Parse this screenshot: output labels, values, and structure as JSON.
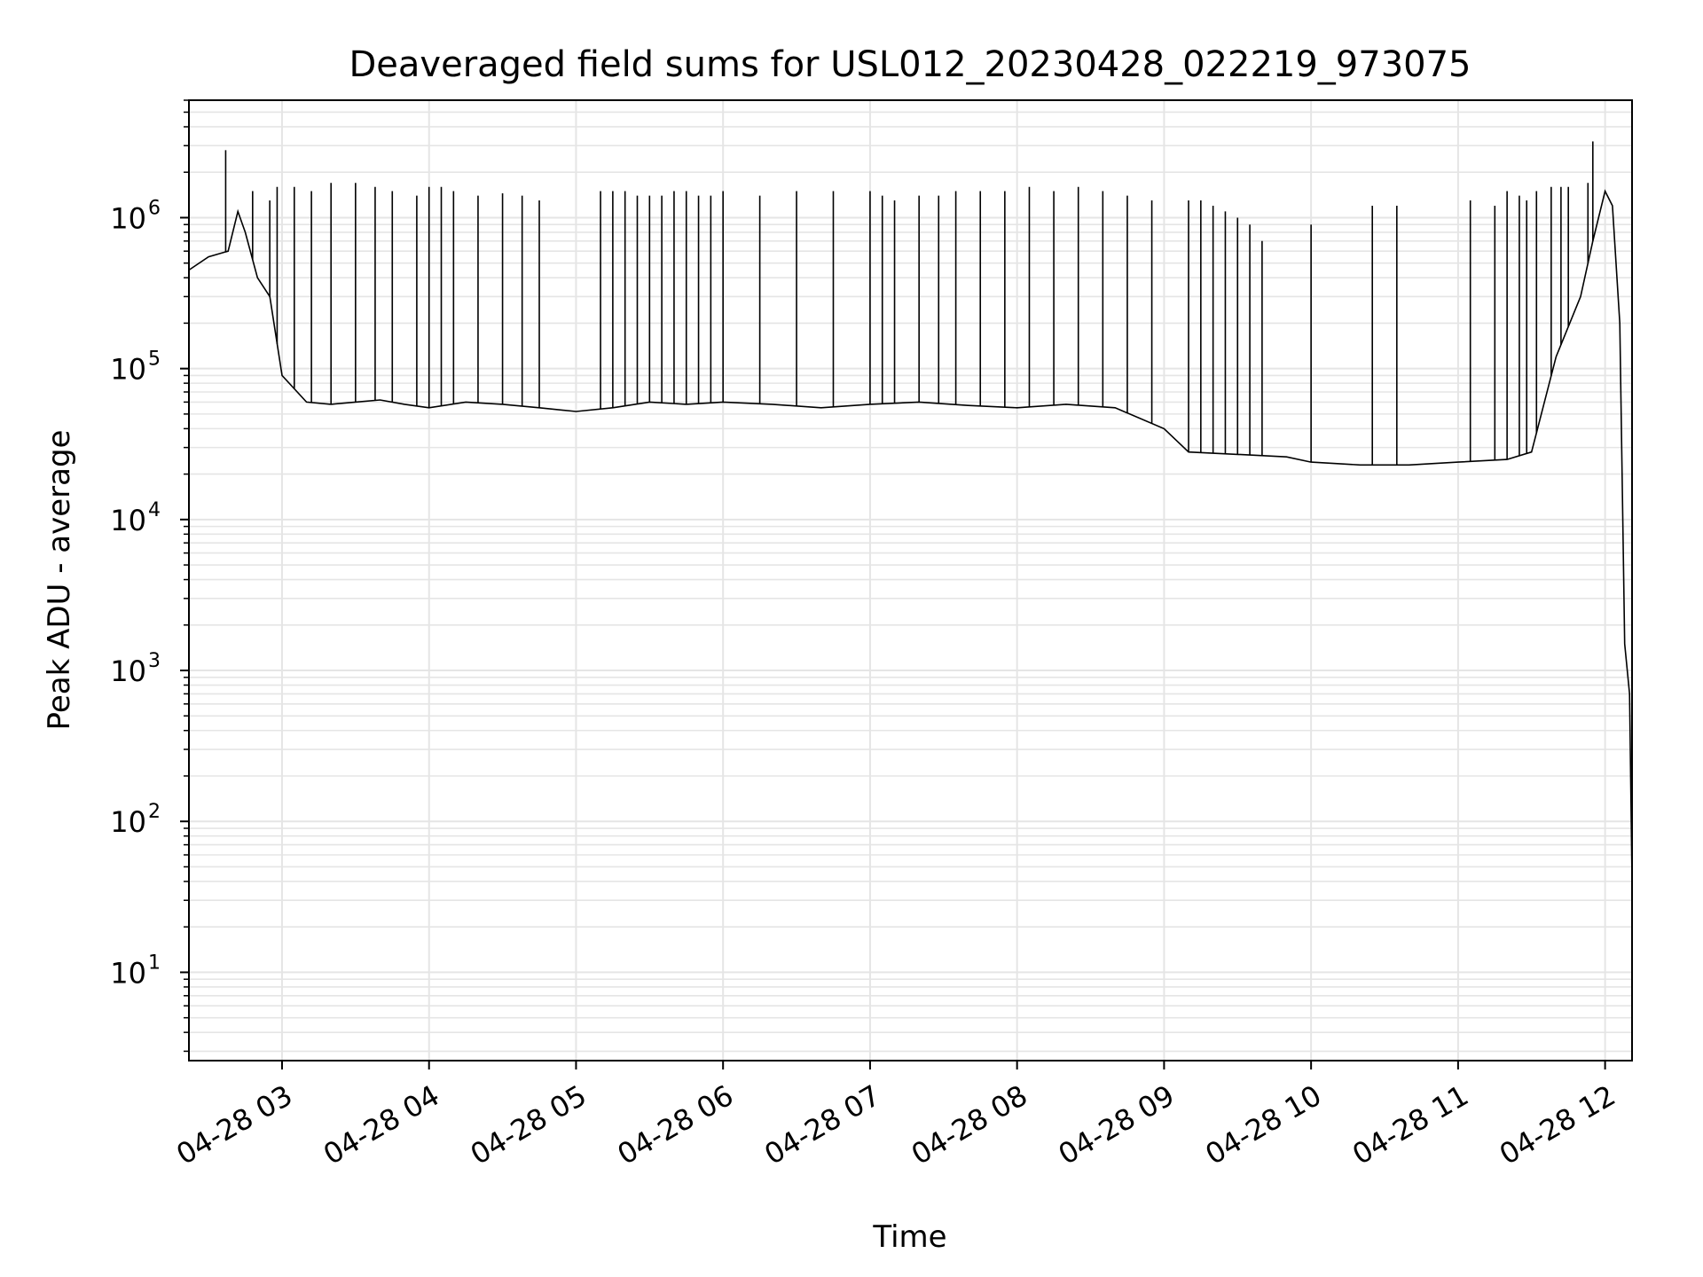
{
  "chart_data": {
    "type": "line",
    "title": "Deaveraged field sums for USL012_20230428_022219_973075",
    "xlabel": "Time",
    "ylabel": "Peak ADU - average",
    "yscale": "log",
    "ylim": [
      2.6,
      6000000
    ],
    "xlim": [
      "2023-04-28 02:22",
      "2023-04-28 12:11"
    ],
    "grid": true,
    "line_color": "#000000",
    "grid_color": "#e5e5e5",
    "x_ticks": [
      {
        "time": "2023-04-28 03:00",
        "label": "04-28 03"
      },
      {
        "time": "2023-04-28 04:00",
        "label": "04-28 04"
      },
      {
        "time": "2023-04-28 05:00",
        "label": "04-28 05"
      },
      {
        "time": "2023-04-28 06:00",
        "label": "04-28 06"
      },
      {
        "time": "2023-04-28 07:00",
        "label": "04-28 07"
      },
      {
        "time": "2023-04-28 08:00",
        "label": "04-28 08"
      },
      {
        "time": "2023-04-28 09:00",
        "label": "04-28 09"
      },
      {
        "time": "2023-04-28 10:00",
        "label": "04-28 10"
      },
      {
        "time": "2023-04-28 11:00",
        "label": "04-28 11"
      },
      {
        "time": "2023-04-28 12:00",
        "label": "04-28 12"
      }
    ],
    "y_ticks": [
      {
        "value": 10,
        "base": "10",
        "exp": "1"
      },
      {
        "value": 100,
        "base": "10",
        "exp": "2"
      },
      {
        "value": 1000,
        "base": "10",
        "exp": "3"
      },
      {
        "value": 10000,
        "base": "10",
        "exp": "4"
      },
      {
        "value": 100000,
        "base": "10",
        "exp": "5"
      },
      {
        "value": 1000000,
        "base": "10",
        "exp": "6"
      }
    ],
    "series": [
      {
        "x": [
          "2023-04-28 02:22",
          "2023-04-28 02:30",
          "2023-04-28 02:38",
          "2023-04-28 02:42",
          "2023-04-28 02:45",
          "2023-04-28 02:50",
          "2023-04-28 02:55",
          "2023-04-28 03:00",
          "2023-04-28 03:10",
          "2023-04-28 03:20",
          "2023-04-28 03:30",
          "2023-04-28 03:40",
          "2023-04-28 03:50",
          "2023-04-28 04:00",
          "2023-04-28 04:15",
          "2023-04-28 04:30",
          "2023-04-28 04:45",
          "2023-04-28 05:00",
          "2023-04-28 05:15",
          "2023-04-28 05:30",
          "2023-04-28 05:45",
          "2023-04-28 06:00",
          "2023-04-28 06:20",
          "2023-04-28 06:40",
          "2023-04-28 07:00",
          "2023-04-28 07:20",
          "2023-04-28 07:40",
          "2023-04-28 08:00",
          "2023-04-28 08:20",
          "2023-04-28 08:40",
          "2023-04-28 09:00",
          "2023-04-28 09:10",
          "2023-04-28 09:30",
          "2023-04-28 09:50",
          "2023-04-28 10:00",
          "2023-04-28 10:20",
          "2023-04-28 10:40",
          "2023-04-28 11:00",
          "2023-04-28 11:20",
          "2023-04-28 11:30",
          "2023-04-28 11:40",
          "2023-04-28 11:50",
          "2023-04-28 11:55",
          "2023-04-28 12:00",
          "2023-04-28 12:03",
          "2023-04-28 12:06",
          "2023-04-28 12:08",
          "2023-04-28 12:10",
          "2023-04-28 12:11"
        ],
        "y": [
          450000,
          550000,
          600000,
          1100000,
          800000,
          400000,
          300000,
          90000,
          60000,
          58000,
          60000,
          62000,
          58000,
          55000,
          60000,
          58000,
          55000,
          52000,
          55000,
          60000,
          58000,
          60000,
          58000,
          55000,
          58000,
          60000,
          57000,
          55000,
          58000,
          55000,
          40000,
          28000,
          27000,
          26000,
          24000,
          23000,
          23000,
          24000,
          25000,
          28000,
          120000,
          300000,
          700000,
          1500000,
          1200000,
          200000,
          1500,
          700,
          40
        ]
      }
    ],
    "spikes": {
      "x": [
        "2023-04-28 02:37",
        "2023-04-28 02:48",
        "2023-04-28 02:55",
        "2023-04-28 02:58",
        "2023-04-28 03:05",
        "2023-04-28 03:12",
        "2023-04-28 03:20",
        "2023-04-28 03:30",
        "2023-04-28 03:38",
        "2023-04-28 03:45",
        "2023-04-28 03:55",
        "2023-04-28 04:00",
        "2023-04-28 04:05",
        "2023-04-28 04:10",
        "2023-04-28 04:20",
        "2023-04-28 04:30",
        "2023-04-28 04:38",
        "2023-04-28 04:45",
        "2023-04-28 05:10",
        "2023-04-28 05:15",
        "2023-04-28 05:20",
        "2023-04-28 05:25",
        "2023-04-28 05:30",
        "2023-04-28 05:35",
        "2023-04-28 05:40",
        "2023-04-28 05:45",
        "2023-04-28 05:50",
        "2023-04-28 05:55",
        "2023-04-28 06:00",
        "2023-04-28 06:15",
        "2023-04-28 06:30",
        "2023-04-28 06:45",
        "2023-04-28 07:00",
        "2023-04-28 07:05",
        "2023-04-28 07:10",
        "2023-04-28 07:20",
        "2023-04-28 07:28",
        "2023-04-28 07:35",
        "2023-04-28 07:45",
        "2023-04-28 07:55",
        "2023-04-28 08:05",
        "2023-04-28 08:15",
        "2023-04-28 08:25",
        "2023-04-28 08:35",
        "2023-04-28 08:45",
        "2023-04-28 08:55",
        "2023-04-28 09:10",
        "2023-04-28 09:15",
        "2023-04-28 09:20",
        "2023-04-28 09:25",
        "2023-04-28 09:30",
        "2023-04-28 09:35",
        "2023-04-28 09:40",
        "2023-04-28 10:00",
        "2023-04-28 10:25",
        "2023-04-28 10:35",
        "2023-04-28 11:05",
        "2023-04-28 11:15",
        "2023-04-28 11:20",
        "2023-04-28 11:25",
        "2023-04-28 11:28",
        "2023-04-28 11:32",
        "2023-04-28 11:38",
        "2023-04-28 11:42",
        "2023-04-28 11:45",
        "2023-04-28 11:53",
        "2023-04-28 11:55"
      ],
      "y": [
        2800000,
        1500000,
        1300000,
        1600000,
        1600000,
        1500000,
        1700000,
        1700000,
        1600000,
        1500000,
        1400000,
        1600000,
        1600000,
        1500000,
        1400000,
        1450000,
        1400000,
        1300000,
        1500000,
        1500000,
        1500000,
        1400000,
        1400000,
        1400000,
        1500000,
        1500000,
        1400000,
        1400000,
        1500000,
        1400000,
        1500000,
        1500000,
        1500000,
        1400000,
        1300000,
        1400000,
        1400000,
        1500000,
        1500000,
        1500000,
        1600000,
        1500000,
        1600000,
        1500000,
        1400000,
        1300000,
        1300000,
        1300000,
        1200000,
        1100000,
        1000000,
        900000,
        700000,
        900000,
        1200000,
        1200000,
        1300000,
        1200000,
        1500000,
        1400000,
        1300000,
        1500000,
        1600000,
        1600000,
        1600000,
        1700000,
        3200000
      ]
    }
  }
}
